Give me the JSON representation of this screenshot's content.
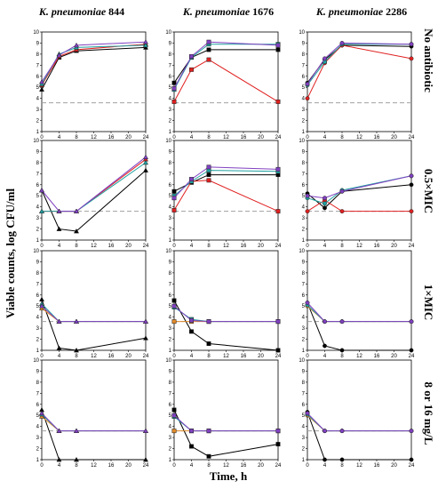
{
  "figure": {
    "y_axis_label": "Viable counts, log CFU/ml",
    "x_axis_label": "Time, h",
    "columns": [
      {
        "species": "K. pneumoniae",
        "strain": "844"
      },
      {
        "species": "K. pneumoniae",
        "strain": "1676"
      },
      {
        "species": "K. pneumoniae",
        "strain": "2286"
      }
    ],
    "rows": [
      "No antibiotic",
      "0.5×MIC",
      "1×MIC",
      "8 or 16 mg/L"
    ]
  },
  "colors": {
    "black": "#000000",
    "red": "#e02020",
    "teal": "#20a0a0",
    "purple": "#8040c0",
    "orange": "#e08a2a",
    "dashed_line": "#a0a0a0"
  },
  "chart_data": {
    "type": "line",
    "layout": "4x3 grid of small multiples",
    "xlim": [
      0,
      24
    ],
    "ylim": [
      1,
      10
    ],
    "x_ticks": [
      0,
      4,
      8,
      12,
      16,
      20,
      24
    ],
    "y_ticks": [
      1,
      2,
      3,
      4,
      5,
      6,
      7,
      8,
      9,
      10
    ],
    "reference_line_y": 3.6,
    "x": [
      0,
      4,
      8,
      24
    ],
    "panels": [
      {
        "row": 0,
        "col": 0,
        "series": [
          {
            "color": "black",
            "marker": "triangle",
            "values": [
              4.8,
              7.7,
              8.3,
              8.6
            ]
          },
          {
            "color": "red",
            "marker": "triangle",
            "values": [
              5.2,
              7.8,
              8.4,
              8.9
            ]
          },
          {
            "color": "teal",
            "marker": "triangle",
            "values": [
              5.3,
              8.0,
              8.6,
              8.8
            ]
          },
          {
            "color": "purple",
            "marker": "triangle",
            "values": [
              5.5,
              7.9,
              8.8,
              9.1
            ]
          }
        ]
      },
      {
        "row": 0,
        "col": 1,
        "series": [
          {
            "color": "black",
            "marker": "square",
            "values": [
              5.4,
              7.7,
              8.4,
              8.4
            ]
          },
          {
            "color": "red",
            "marker": "square",
            "values": [
              3.7,
              6.6,
              7.5,
              3.7
            ]
          },
          {
            "color": "teal",
            "marker": "square",
            "values": [
              4.8,
              7.7,
              8.9,
              8.9
            ]
          },
          {
            "color": "purple",
            "marker": "square",
            "values": [
              4.9,
              7.8,
              9.1,
              8.8
            ]
          }
        ]
      },
      {
        "row": 0,
        "col": 2,
        "series": [
          {
            "color": "black",
            "marker": "circle",
            "values": [
              5.4,
              7.5,
              8.8,
              8.7
            ]
          },
          {
            "color": "red",
            "marker": "circle",
            "values": [
              4.0,
              7.2,
              8.8,
              7.6
            ]
          },
          {
            "color": "teal",
            "marker": "circle",
            "values": [
              5.2,
              7.3,
              8.9,
              8.9
            ]
          },
          {
            "color": "purple",
            "marker": "circle",
            "values": [
              5.3,
              7.6,
              9.0,
              8.9
            ]
          }
        ]
      },
      {
        "row": 1,
        "col": 0,
        "series": [
          {
            "color": "black",
            "marker": "triangle",
            "values": [
              5.5,
              2.0,
              1.8,
              7.3
            ]
          },
          {
            "color": "red",
            "marker": "triangle",
            "values": [
              3.6,
              3.6,
              3.6,
              8.3
            ]
          },
          {
            "color": "teal",
            "marker": "triangle",
            "values": [
              3.6,
              3.6,
              3.6,
              8.0
            ]
          },
          {
            "color": "purple",
            "marker": "triangle",
            "values": [
              5.5,
              3.6,
              3.6,
              8.5
            ]
          }
        ]
      },
      {
        "row": 1,
        "col": 1,
        "series": [
          {
            "color": "black",
            "marker": "square",
            "values": [
              5.4,
              6.2,
              6.9,
              6.9
            ]
          },
          {
            "color": "red",
            "marker": "square",
            "values": [
              3.7,
              6.3,
              6.4,
              3.6
            ]
          },
          {
            "color": "teal",
            "marker": "square",
            "values": [
              5.0,
              6.3,
              7.3,
              7.2
            ]
          },
          {
            "color": "purple",
            "marker": "square",
            "values": [
              4.8,
              6.5,
              7.6,
              7.4
            ]
          }
        ]
      },
      {
        "row": 1,
        "col": 2,
        "series": [
          {
            "color": "black",
            "marker": "circle",
            "values": [
              5.2,
              3.9,
              5.4,
              6.0
            ]
          },
          {
            "color": "red",
            "marker": "circle",
            "values": [
              3.6,
              4.6,
              3.6,
              3.6
            ]
          },
          {
            "color": "teal",
            "marker": "circle",
            "values": [
              4.8,
              4.3,
              5.5,
              6.8
            ]
          },
          {
            "color": "purple",
            "marker": "circle",
            "values": [
              5.0,
              4.8,
              5.4,
              6.8
            ]
          }
        ]
      },
      {
        "row": 2,
        "col": 0,
        "series": [
          {
            "color": "black",
            "marker": "triangle",
            "values": [
              5.6,
              1.2,
              1.0,
              2.1
            ]
          },
          {
            "color": "orange",
            "marker": "triangle",
            "values": [
              4.8,
              3.6,
              3.6,
              3.6
            ]
          },
          {
            "color": "teal",
            "marker": "triangle",
            "values": [
              5.2,
              3.6,
              3.6,
              3.6
            ]
          },
          {
            "color": "purple",
            "marker": "triangle",
            "values": [
              5.0,
              3.6,
              3.6,
              3.6
            ]
          }
        ]
      },
      {
        "row": 2,
        "col": 1,
        "series": [
          {
            "color": "black",
            "marker": "square",
            "values": [
              5.5,
              2.7,
              1.6,
              1.0
            ]
          },
          {
            "color": "orange",
            "marker": "square",
            "values": [
              3.6,
              3.6,
              3.6,
              3.6
            ]
          },
          {
            "color": "teal",
            "marker": "square",
            "values": [
              4.9,
              3.8,
              3.6,
              3.6
            ]
          },
          {
            "color": "purple",
            "marker": "square",
            "values": [
              5.0,
              3.7,
              3.6,
              3.6
            ]
          }
        ]
      },
      {
        "row": 2,
        "col": 2,
        "series": [
          {
            "color": "black",
            "marker": "circle",
            "values": [
              5.3,
              1.4,
              1.0,
              1.0
            ]
          },
          {
            "color": "orange",
            "marker": "circle",
            "values": [
              5.0,
              3.6,
              3.6,
              3.6
            ]
          },
          {
            "color": "teal",
            "marker": "circle",
            "values": [
              5.1,
              3.6,
              3.6,
              3.6
            ]
          },
          {
            "color": "purple",
            "marker": "circle",
            "values": [
              5.3,
              3.6,
              3.6,
              3.6
            ]
          }
        ]
      },
      {
        "row": 3,
        "col": 0,
        "series": [
          {
            "color": "black",
            "marker": "triangle",
            "values": [
              5.5,
              1.0,
              1.0,
              1.0
            ]
          },
          {
            "color": "orange",
            "marker": "triangle",
            "values": [
              4.9,
              3.6,
              3.6,
              3.6
            ]
          },
          {
            "color": "teal",
            "marker": "triangle",
            "values": [
              5.1,
              3.6,
              3.6,
              3.6
            ]
          },
          {
            "color": "purple",
            "marker": "triangle",
            "values": [
              5.2,
              3.6,
              3.6,
              3.6
            ]
          }
        ]
      },
      {
        "row": 3,
        "col": 1,
        "series": [
          {
            "color": "black",
            "marker": "square",
            "values": [
              5.5,
              2.2,
              1.3,
              2.4
            ]
          },
          {
            "color": "orange",
            "marker": "square",
            "values": [
              3.6,
              3.6,
              3.6,
              3.6
            ]
          },
          {
            "color": "teal",
            "marker": "square",
            "values": [
              4.9,
              3.6,
              3.6,
              3.6
            ]
          },
          {
            "color": "purple",
            "marker": "square",
            "values": [
              5.0,
              3.6,
              3.6,
              3.6
            ]
          }
        ]
      },
      {
        "row": 3,
        "col": 2,
        "series": [
          {
            "color": "black",
            "marker": "circle",
            "values": [
              5.3,
              1.0,
              1.0,
              1.0
            ]
          },
          {
            "color": "orange",
            "marker": "circle",
            "values": [
              5.0,
              3.6,
              3.6,
              3.6
            ]
          },
          {
            "color": "teal",
            "marker": "circle",
            "values": [
              5.1,
              3.6,
              3.6,
              3.6
            ]
          },
          {
            "color": "purple",
            "marker": "circle",
            "values": [
              5.2,
              3.6,
              3.6,
              3.6
            ]
          }
        ]
      }
    ]
  }
}
